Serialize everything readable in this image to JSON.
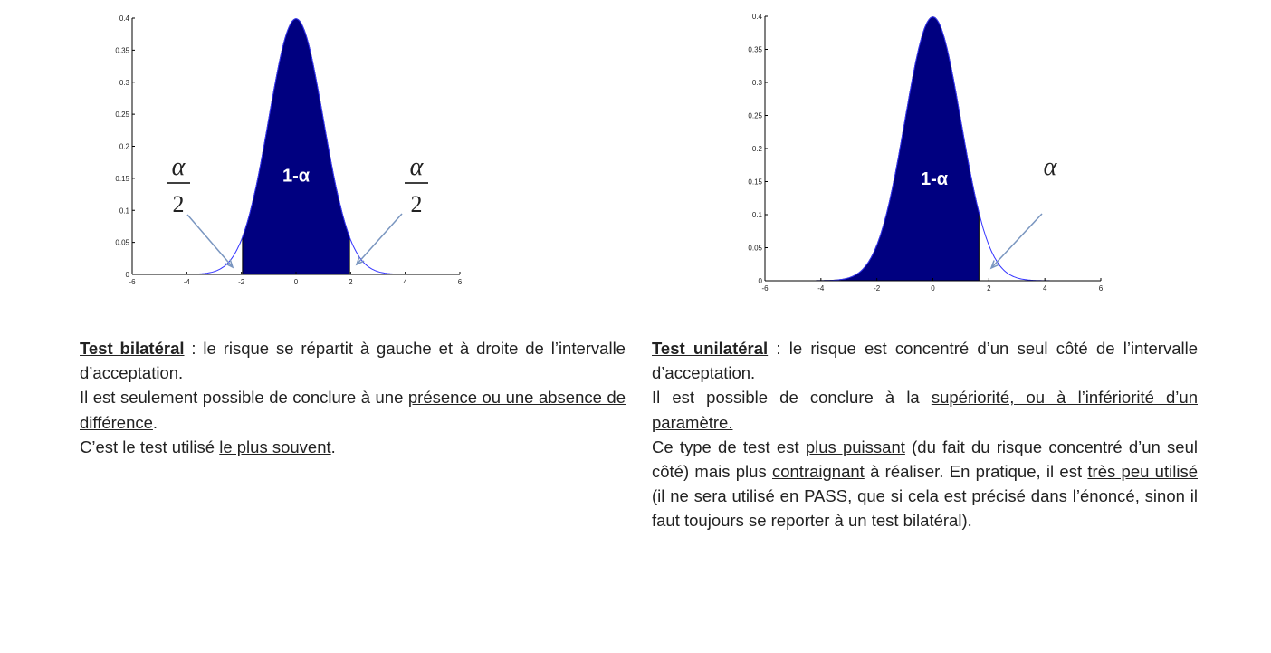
{
  "charts": [
    {
      "id": "bilateral",
      "type": "area",
      "curve": "normal density",
      "mean": 0,
      "sd": 1,
      "shaded_range": [
        -1.96,
        1.96
      ],
      "xlim": [
        -6,
        6
      ],
      "ylim": [
        0,
        0.4
      ],
      "xticks": [
        "-6",
        "-4",
        "-2",
        "0",
        "2",
        "4",
        "6"
      ],
      "yticks": [
        "0",
        "0.05",
        "0.1",
        "0.15",
        "0.2",
        "0.25",
        "0.3",
        "0.35",
        "0.4"
      ],
      "center_label": "1-α",
      "tail_labels": [
        {
          "num": "α",
          "den": "2"
        },
        {
          "num": "α",
          "den": "2"
        }
      ],
      "fill_color": "#000080",
      "curve_color": "#3333ff",
      "arrow_color": "#7a96c0"
    },
    {
      "id": "unilateral",
      "type": "area",
      "curve": "normal density",
      "mean": 0,
      "sd": 1,
      "shaded_range": [
        -6,
        1.645
      ],
      "xlim": [
        -6,
        6
      ],
      "ylim": [
        0,
        0.4
      ],
      "xticks": [
        "-6",
        "-4",
        "-2",
        "0",
        "2",
        "4",
        "6"
      ],
      "yticks": [
        "0",
        "0.05",
        "0.1",
        "0.15",
        "0.2",
        "0.25",
        "0.3",
        "0.35",
        "0.4"
      ],
      "center_label": "1-α",
      "tail_labels": [
        {
          "num": "α"
        }
      ],
      "fill_color": "#000080",
      "curve_color": "#3333ff",
      "arrow_color": "#7a96c0"
    }
  ],
  "left": {
    "title": "Test bilatéral",
    "t1": " : le risque se répartit à gauche et à droite de l’intervalle d’acceptation.",
    "p2a": "Il est seulement possible de conclure à une ",
    "p2u": "présence ou une absence de différence",
    "p2b": ".",
    "p3a": "C’est le test utilisé ",
    "p3u": "le plus souvent",
    "p3b": "."
  },
  "right": {
    "title": "Test unilatéral",
    "t1": " : le risque est concentré d’un seul côté de l’intervalle d’acceptation.",
    "p2a": "Il est possible de conclure à la ",
    "p2u": "supériorité, ou à l’infériorité d’un paramètre.",
    "p3a": "Ce type de test est ",
    "p3u1": "plus puissant",
    "p3b": " (du fait du risque concentré d’un seul côté) mais plus ",
    "p3u2": "contraignant",
    "p3c": " à réaliser. En pratique, il est ",
    "p3u3": "très peu utilisé",
    "p3d": " (il ne sera utilisé en PASS, que si cela est précisé dans l’énoncé, sinon il faut toujours se reporter à un test bilatéral)."
  }
}
